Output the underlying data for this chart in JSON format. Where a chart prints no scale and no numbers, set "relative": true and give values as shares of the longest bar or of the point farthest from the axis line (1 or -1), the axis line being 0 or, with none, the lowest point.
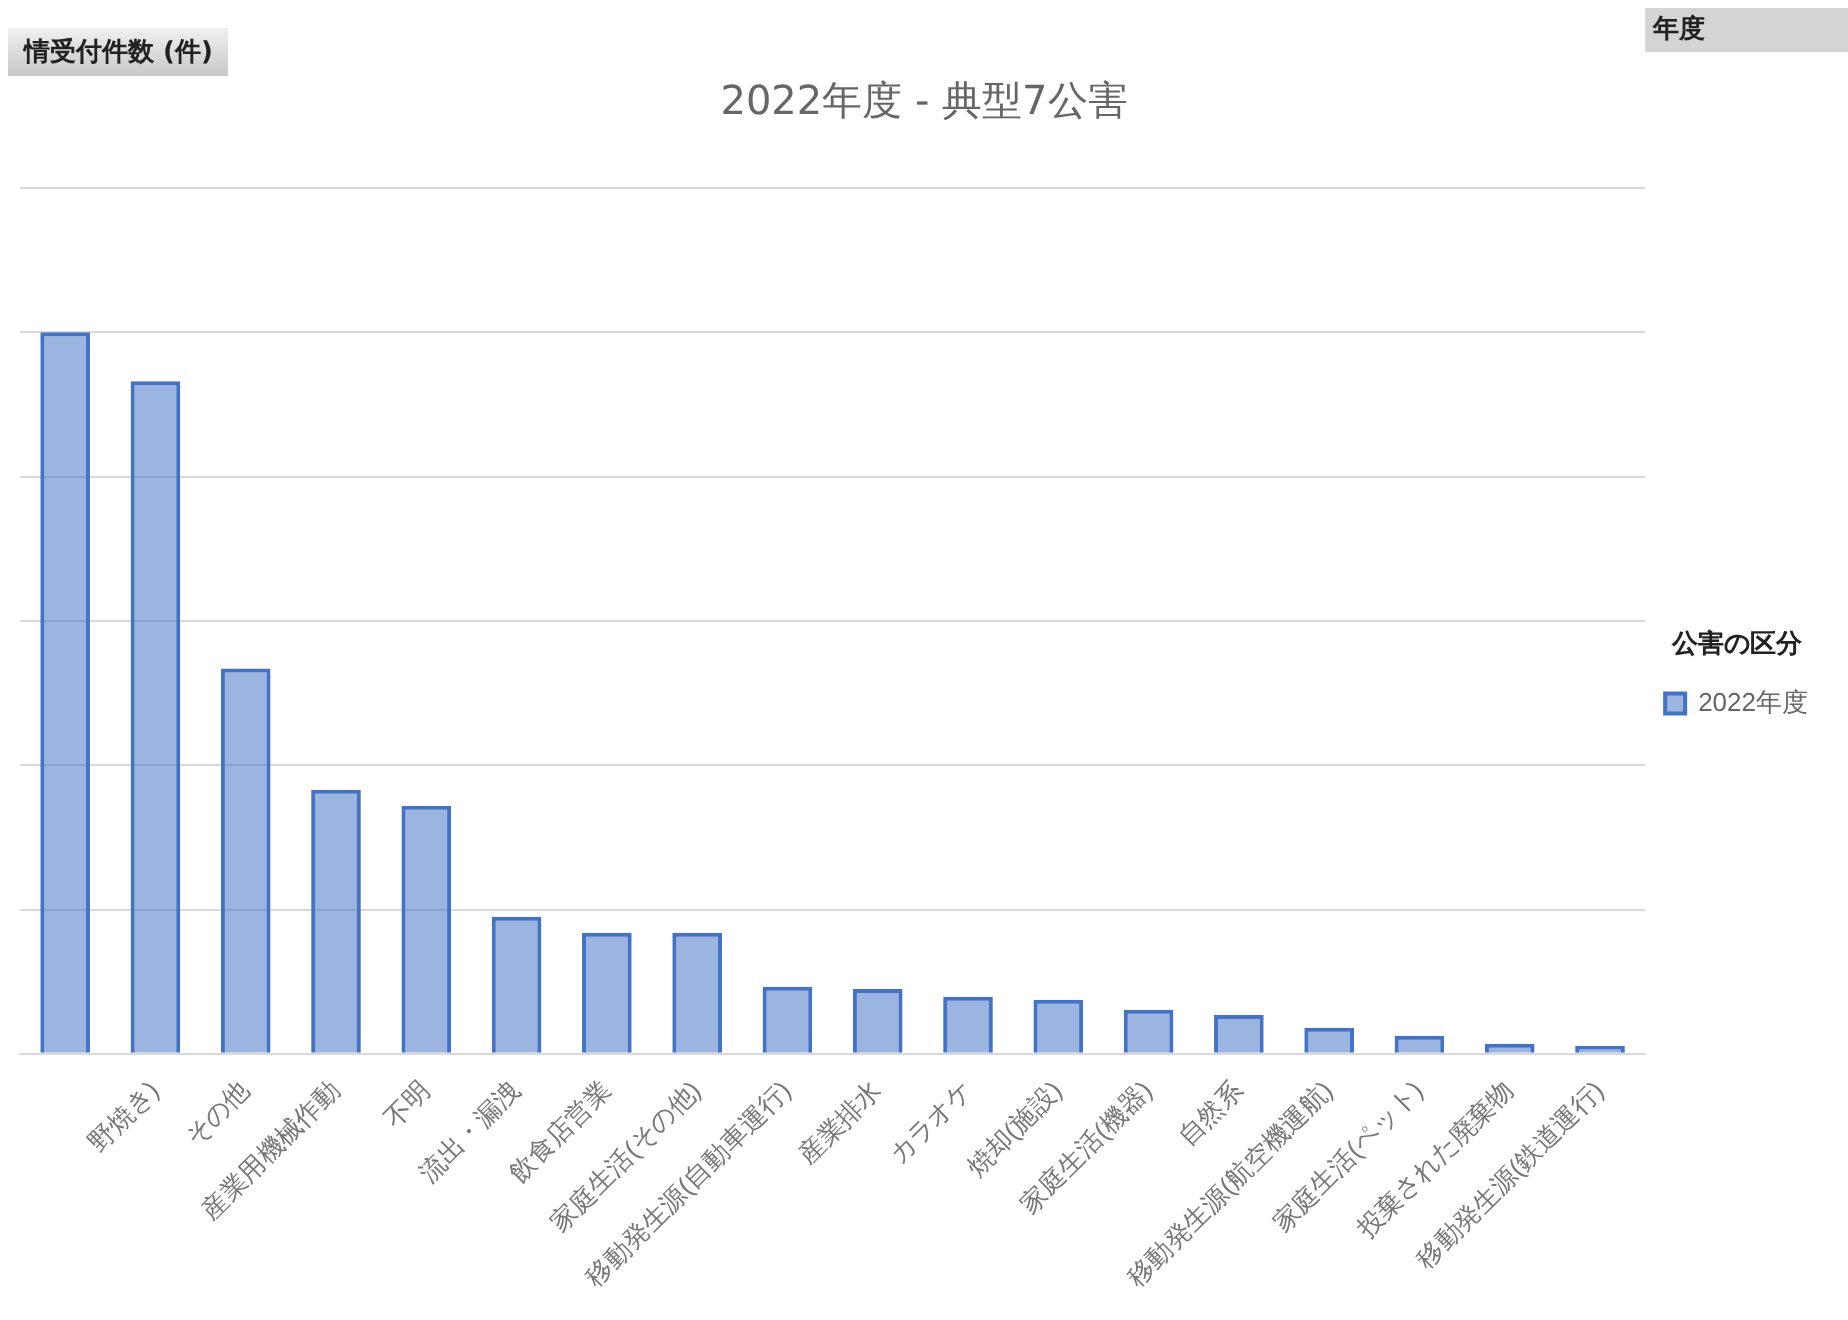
{
  "chart_data": {
    "type": "bar",
    "title": "2022年度 - 典型7公害",
    "relative": true,
    "grid": "y",
    "legend": "right",
    "legend_title": "公害の区分",
    "annotations": [
      "情受付件数 (件)",
      "年度"
    ],
    "categories": [
      null,
      "野焼き)",
      "その他",
      "産業用機械作動",
      "不明",
      "流出・漏洩",
      "飲食店営業",
      "家庭生活(その他)",
      "移動発生源(自動車運行)",
      "産業排水",
      "カラオケ",
      "焼却(施設)",
      "家庭生活(機器)",
      "自然系",
      "移動発生源(航空機運航)",
      "家庭生活(ペット)",
      "投棄された廃棄物",
      "移動発生源(鉄道運行)"
    ],
    "series": [
      {
        "name": "2022年度",
        "color": "#4472c4",
        "values": [
          1,
          0.932,
          0.534,
          0.366,
          0.344,
          0.19,
          0.168,
          0.168,
          0.093,
          0.09,
          0.079,
          0.075,
          0.061,
          0.054,
          0.036,
          0.025,
          0.014,
          0.011
        ]
      }
    ]
  }
}
